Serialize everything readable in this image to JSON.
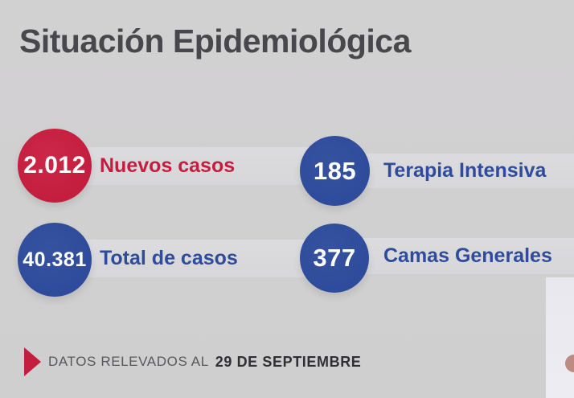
{
  "title": "Situación Epidemiológica",
  "stats": [
    {
      "value": "2.012",
      "label": "Nuevos casos"
    },
    {
      "value": "40.381",
      "label": "Total de casos"
    },
    {
      "value": "185",
      "label": "Terapia Intensiva"
    },
    {
      "value": "377",
      "label": "Camas Generales"
    }
  ],
  "footer": {
    "label": "DATOS RELEVADOS AL",
    "date": "29 DE SEPTIEMBRE"
  },
  "colors": {
    "accent_red": "#C41E3E",
    "accent_blue": "#2E4C9B",
    "background": "#D2D1D2",
    "ribbon": "#D7D6D9",
    "title_text": "#48484C",
    "footer_text": "#58585C",
    "footer_date": "#303034",
    "value_text": "#FFFFFF",
    "panel": "#ECECF2",
    "skin": "#BE8A84"
  }
}
